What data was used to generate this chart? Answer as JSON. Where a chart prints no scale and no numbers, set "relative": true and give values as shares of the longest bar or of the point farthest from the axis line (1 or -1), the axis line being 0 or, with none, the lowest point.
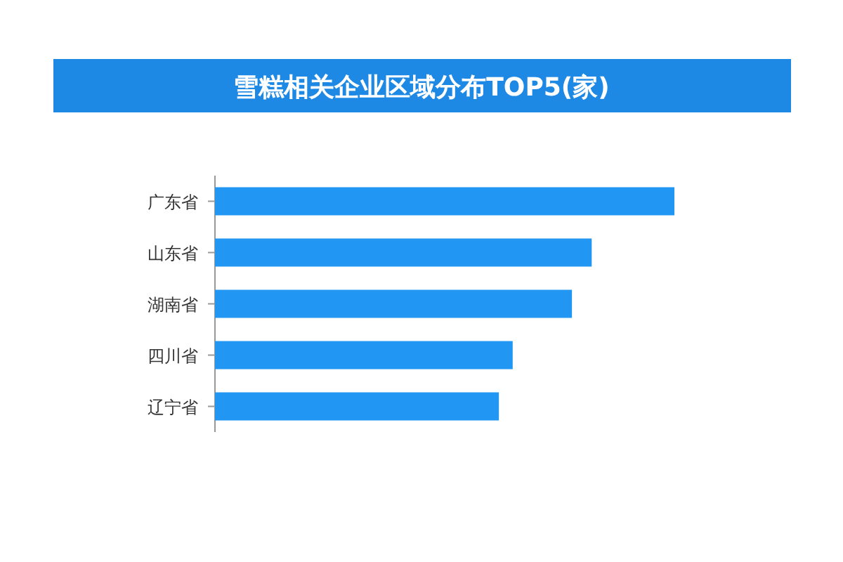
{
  "chart_data": {
    "type": "bar",
    "orientation": "horizontal",
    "relative": true,
    "title": "雪糕相关企业区域分布TOP5(家)",
    "categories": [
      "广东省",
      "山东省",
      "湖南省",
      "四川省",
      "辽宁省"
    ],
    "values": [
      1,
      0.82,
      0.777,
      0.648,
      0.618
    ],
    "color": "#2196f3"
  }
}
